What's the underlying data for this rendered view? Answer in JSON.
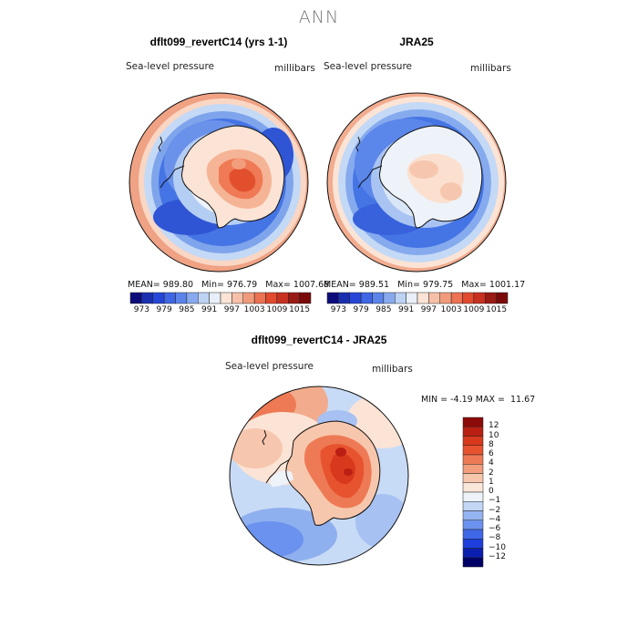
{
  "figure": {
    "title": "ANN",
    "colors": {
      "ocean_low": "#1f4fd6",
      "ocean_mid": "#5b8fea",
      "ocean_light": "#c6ddf7",
      "neutral": "#f3f6fb",
      "warm_light": "#f7c8b0",
      "warm": "#ef6b4a",
      "warm_dark": "#d03a20",
      "coast": "#111111"
    }
  },
  "panels": [
    {
      "title": "dflt099_revertC14 (yrs 1-1)",
      "variable": "Sea-level pressure",
      "units": "millibars",
      "stats": {
        "mean_label": "MEAN=",
        "mean": "989.80",
        "min_label": "Min=",
        "min": "976.79",
        "max_label": "Max=",
        "max": "1007.68"
      }
    },
    {
      "title": "JRA25",
      "variable": "Sea-level pressure",
      "units": "millibars",
      "stats": {
        "mean_label": "MEAN=",
        "mean": "989.51",
        "min_label": "Min=",
        "min": "979.75",
        "max_label": "Max=",
        "max": "1001.17"
      }
    },
    {
      "title": "dflt099_revertC14 - JRA25",
      "variable": "Sea-level pressure",
      "units": "millibars",
      "stats": {
        "min_label": "MIN =",
        "min": "-4.19",
        "max_label": "MAX =",
        "max": "11.67"
      }
    }
  ],
  "colorbar_top": {
    "colors": [
      "#0c0c7a",
      "#1a2fb0",
      "#2646d8",
      "#3f66e4",
      "#5b84ea",
      "#88a9ee",
      "#bcd3f4",
      "#e8eff8",
      "#fbe4d6",
      "#f6c0a8",
      "#f19b7c",
      "#ec7252",
      "#e14a2c",
      "#c83020",
      "#9a1a14",
      "#7a0a0a"
    ],
    "ticks": [
      "973",
      "979",
      "985",
      "991",
      "997",
      "1003",
      "1009",
      "1015"
    ]
  },
  "colorbar_diff": {
    "colors": [
      "#000066",
      "#0a1fb0",
      "#1e3fdc",
      "#3f67e8",
      "#6a92ee",
      "#95b4f2",
      "#c3d6f6",
      "#eef2f9",
      "#fbe7da",
      "#f7c7ad",
      "#f29d7c",
      "#ee7a55",
      "#e8532f",
      "#d8381c",
      "#b91f12",
      "#8c0a08"
    ],
    "ticks": [
      "12",
      "10",
      "8",
      "6",
      "4",
      "2",
      "1",
      "0",
      "−1",
      "−2",
      "−4",
      "−6",
      "−8",
      "−10",
      "−12"
    ]
  }
}
